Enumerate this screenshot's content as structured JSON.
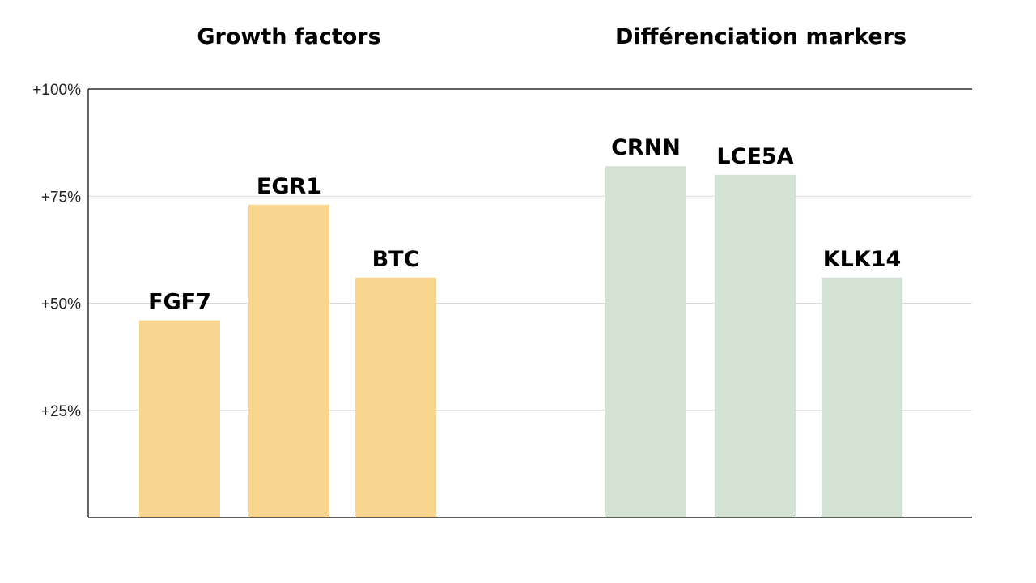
{
  "chart_data": {
    "type": "bar",
    "ylim": [
      0,
      100
    ],
    "yticks": [
      {
        "value": 25,
        "label": "+25%"
      },
      {
        "value": 50,
        "label": "+50%"
      },
      {
        "value": 75,
        "label": "+75%"
      },
      {
        "value": 100,
        "label": "+100%"
      }
    ],
    "grid": true,
    "groups": [
      {
        "title": "Growth factors",
        "color": "#F8D690",
        "categories": [
          "FGF7",
          "EGR1",
          "BTC"
        ],
        "values": [
          46,
          73,
          56
        ]
      },
      {
        "title": "Différenciation markers",
        "color": "#D4E2D4",
        "categories": [
          "CRNN",
          "LCE5A",
          "KLK14"
        ],
        "values": [
          82,
          80,
          56
        ]
      }
    ]
  }
}
